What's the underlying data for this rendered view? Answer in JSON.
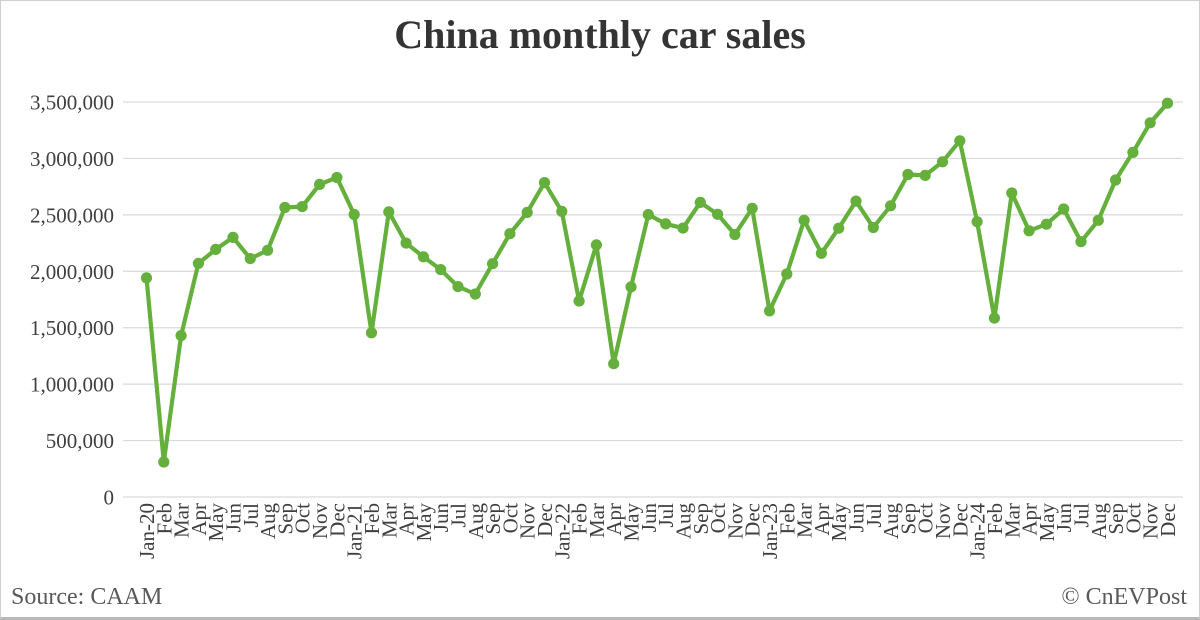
{
  "title": "China monthly car sales",
  "footer": {
    "source": "Source: CAAM",
    "copyright": "© CnEVPost"
  },
  "colors": {
    "line": "#65b03d",
    "gridline": "#d9d9d9",
    "tick_text": "#3f3f3f",
    "title_text": "#343434",
    "footer_text": "#595959",
    "background": "#ffffff"
  },
  "chart_data": {
    "type": "line",
    "title": "China monthly car sales",
    "xlabel": "",
    "ylabel": "",
    "ylim": [
      0,
      3500000
    ],
    "ytick_step": 500000,
    "ytick_labels": [
      "0",
      "500,000",
      "1,000,000",
      "1,500,000",
      "2,000,000",
      "2,500,000",
      "3,000,000",
      "3,500,000"
    ],
    "grid": "horizontal",
    "legend": "none",
    "marker": "circle",
    "categories": [
      "Jan-20",
      "Feb",
      "Mar",
      "Apr",
      "May",
      "Jun",
      "Jul",
      "Aug",
      "Sep",
      "Oct",
      "Nov",
      "Dec",
      "Jan-21",
      "Feb",
      "Mar",
      "Apr",
      "May",
      "Jun",
      "Jul",
      "Aug",
      "Sep",
      "Oct",
      "Nov",
      "Dec",
      "Jan-22",
      "Feb",
      "Mar",
      "Apr",
      "May",
      "Jun",
      "Jul",
      "Aug",
      "Sep",
      "Oct",
      "Nov",
      "Dec",
      "Jan-23",
      "Feb",
      "Mar",
      "Apr",
      "May",
      "Jun",
      "Jul",
      "Aug",
      "Sep",
      "Oct",
      "Nov",
      "Dec",
      "Jan-24",
      "Feb",
      "Mar",
      "Apr",
      "May",
      "Jun",
      "Jul",
      "Aug",
      "Sep",
      "Oct",
      "Nov",
      "Dec"
    ],
    "values": [
      1941000,
      310000,
      1430000,
      2070000,
      2194000,
      2300000,
      2112000,
      2186000,
      2565000,
      2573000,
      2770000,
      2831000,
      2503000,
      1455000,
      2526000,
      2250000,
      2128000,
      2015000,
      1864000,
      1799000,
      2067000,
      2333000,
      2522000,
      2786000,
      2531000,
      1737000,
      2234000,
      1181000,
      1862000,
      2502000,
      2420000,
      2383000,
      2610000,
      2505000,
      2326000,
      2558000,
      1649000,
      1976000,
      2452000,
      2159000,
      2382000,
      2622000,
      2388000,
      2580000,
      2858000,
      2850000,
      2970000,
      3156000,
      2439000,
      1585000,
      2694000,
      2359000,
      2417000,
      2552000,
      2262000,
      2452000,
      2809000,
      3053000,
      3316000,
      3489000
    ]
  }
}
